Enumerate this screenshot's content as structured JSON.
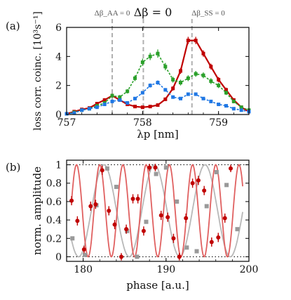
{
  "chart_data": [
    {
      "panel_label": "(a)",
      "type": "line",
      "xlabel": "λp [nm]",
      "ylabel": "loss corr. coinc. [10³s⁻¹]",
      "xlim": [
        757,
        759.4
      ],
      "ylim": [
        0,
        6
      ],
      "xticks": [
        "757",
        "758",
        "759"
      ],
      "yticks": [
        "0",
        "2",
        "4",
        "6"
      ],
      "vlines": [
        {
          "x": 757.6,
          "label": "Δβ_AA = 0"
        },
        {
          "x": 758.01,
          "label": "Δβ = 0"
        },
        {
          "x": 758.65,
          "label": "Δβ_SS = 0"
        }
      ],
      "series": [
        {
          "color": "#c00000",
          "style": "solid",
          "x": [
            757.0,
            757.1,
            757.2,
            757.3,
            757.4,
            757.5,
            757.6,
            757.7,
            757.8,
            757.9,
            758.0,
            758.1,
            758.2,
            758.3,
            758.4,
            758.5,
            758.6,
            758.7,
            758.8,
            758.9,
            759.0,
            759.1,
            759.2,
            759.3,
            759.4
          ],
          "y": [
            0.05,
            0.2,
            0.35,
            0.45,
            0.75,
            1.0,
            1.3,
            1.0,
            0.7,
            0.55,
            0.5,
            0.55,
            0.65,
            1.05,
            1.8,
            3.0,
            5.1,
            5.1,
            4.2,
            3.3,
            2.4,
            1.7,
            1.0,
            0.5,
            0.2
          ],
          "err": [
            0.05,
            0.08,
            0.1,
            0.1,
            0.12,
            0.12,
            0.14,
            0.12,
            0.1,
            0.1,
            0.1,
            0.1,
            0.1,
            0.12,
            0.15,
            0.2,
            0.25,
            0.25,
            0.22,
            0.2,
            0.18,
            0.15,
            0.12,
            0.1,
            0.08
          ]
        },
        {
          "color": "#2aa02a",
          "style": "dashed",
          "x": [
            757.0,
            757.1,
            757.2,
            757.3,
            757.4,
            757.5,
            757.6,
            757.7,
            757.8,
            757.9,
            758.0,
            758.1,
            758.2,
            758.3,
            758.4,
            758.5,
            758.6,
            758.7,
            758.8,
            758.9,
            759.0,
            759.1,
            759.2,
            759.3,
            759.4
          ],
          "y": [
            0.05,
            0.15,
            0.3,
            0.4,
            0.6,
            0.8,
            1.3,
            1.2,
            1.6,
            2.5,
            3.6,
            4.0,
            4.2,
            3.3,
            2.4,
            2.2,
            2.5,
            2.8,
            2.7,
            2.3,
            2.0,
            1.5,
            0.9,
            0.5,
            0.3
          ],
          "err": [
            0.05,
            0.08,
            0.1,
            0.1,
            0.12,
            0.12,
            0.14,
            0.14,
            0.15,
            0.2,
            0.25,
            0.25,
            0.28,
            0.25,
            0.2,
            0.2,
            0.2,
            0.2,
            0.2,
            0.2,
            0.18,
            0.15,
            0.12,
            0.1,
            0.1
          ]
        },
        {
          "color": "#1f77e4",
          "style": "dashed",
          "x": [
            757.0,
            757.1,
            757.2,
            757.3,
            757.4,
            757.5,
            757.6,
            757.7,
            757.8,
            757.9,
            758.0,
            758.1,
            758.2,
            758.3,
            758.4,
            758.5,
            758.6,
            758.7,
            758.8,
            758.9,
            759.0,
            759.1,
            759.2,
            759.3,
            759.4
          ],
          "y": [
            0.05,
            0.1,
            0.3,
            0.4,
            0.5,
            0.7,
            0.9,
            1.0,
            0.8,
            1.1,
            1.5,
            2.0,
            2.2,
            1.7,
            1.2,
            1.1,
            1.4,
            1.4,
            1.1,
            0.9,
            0.7,
            0.6,
            0.4,
            0.3,
            0.2
          ],
          "err": [
            0.04,
            0.05,
            0.06,
            0.06,
            0.07,
            0.08,
            0.08,
            0.08,
            0.08,
            0.1,
            0.12,
            0.14,
            0.15,
            0.12,
            0.1,
            0.1,
            0.1,
            0.1,
            0.1,
            0.08,
            0.07,
            0.06,
            0.05,
            0.05,
            0.04
          ]
        }
      ]
    },
    {
      "panel_label": "(b)",
      "type": "scatter",
      "xlabel": "phase [a.u.]",
      "ylabel": "norm. amplitude",
      "xlim": [
        178,
        200
      ],
      "ylim": [
        -0.05,
        1.05
      ],
      "xticks": [
        "180",
        "190",
        "200"
      ],
      "yticks": [
        "0",
        "0.2",
        "0.4",
        "0.6",
        "0.8",
        "1"
      ],
      "hlines": [
        0,
        1
      ],
      "fits": [
        {
          "color": "#e06060",
          "amplitude": 0.5,
          "offset": 0.5,
          "period": 2.8,
          "phase_x": 182.0,
          "x_range": [
            178.6,
            199.3
          ]
        },
        {
          "color": "#b8b8b8",
          "amplitude": 0.5,
          "offset": 0.5,
          "period": 6.1,
          "phase_x": 182.5,
          "x_range": [
            178.6,
            199.3
          ]
        }
      ],
      "series": [
        {
          "color": "#c00000",
          "marker": "circle",
          "x": [
            178.6,
            179.3,
            180.1,
            180.9,
            181.5,
            182.3,
            183.1,
            183.8,
            184.6,
            185.2,
            186.0,
            186.6,
            187.3,
            188.0,
            188.7,
            189.4,
            190.2,
            190.9,
            191.6,
            192.4,
            193.2,
            193.9,
            194.6,
            195.5,
            196.3,
            197.1,
            197.8
          ],
          "y": [
            0.61,
            0.39,
            0.08,
            0.55,
            0.57,
            0.94,
            0.5,
            0.35,
            0.0,
            0.3,
            0.63,
            0.63,
            0.28,
            0.97,
            0.97,
            0.45,
            0.43,
            0.2,
            0.0,
            0.42,
            0.8,
            0.83,
            0.72,
            0.16,
            0.21,
            0.42,
            0.96
          ],
          "err": [
            0.05,
            0.05,
            0.04,
            0.05,
            0.05,
            0.05,
            0.05,
            0.05,
            0.04,
            0.05,
            0.05,
            0.05,
            0.05,
            0.04,
            0.04,
            0.05,
            0.05,
            0.05,
            0.04,
            0.05,
            0.05,
            0.05,
            0.05,
            0.05,
            0.05,
            0.05,
            0.04
          ]
        },
        {
          "color": "#999999",
          "marker": "square",
          "x": [
            178.7,
            180.2,
            181.6,
            182.9,
            184.0,
            185.3,
            186.5,
            187.6,
            188.8,
            190.0,
            191.3,
            192.5,
            193.7,
            194.9,
            196.1,
            197.3,
            198.6
          ],
          "y": [
            0.2,
            0.02,
            0.56,
            0.96,
            0.76,
            0.28,
            0.0,
            0.38,
            0.9,
            0.97,
            0.6,
            0.1,
            0.06,
            0.55,
            0.92,
            0.78,
            0.3
          ]
        }
      ]
    }
  ]
}
